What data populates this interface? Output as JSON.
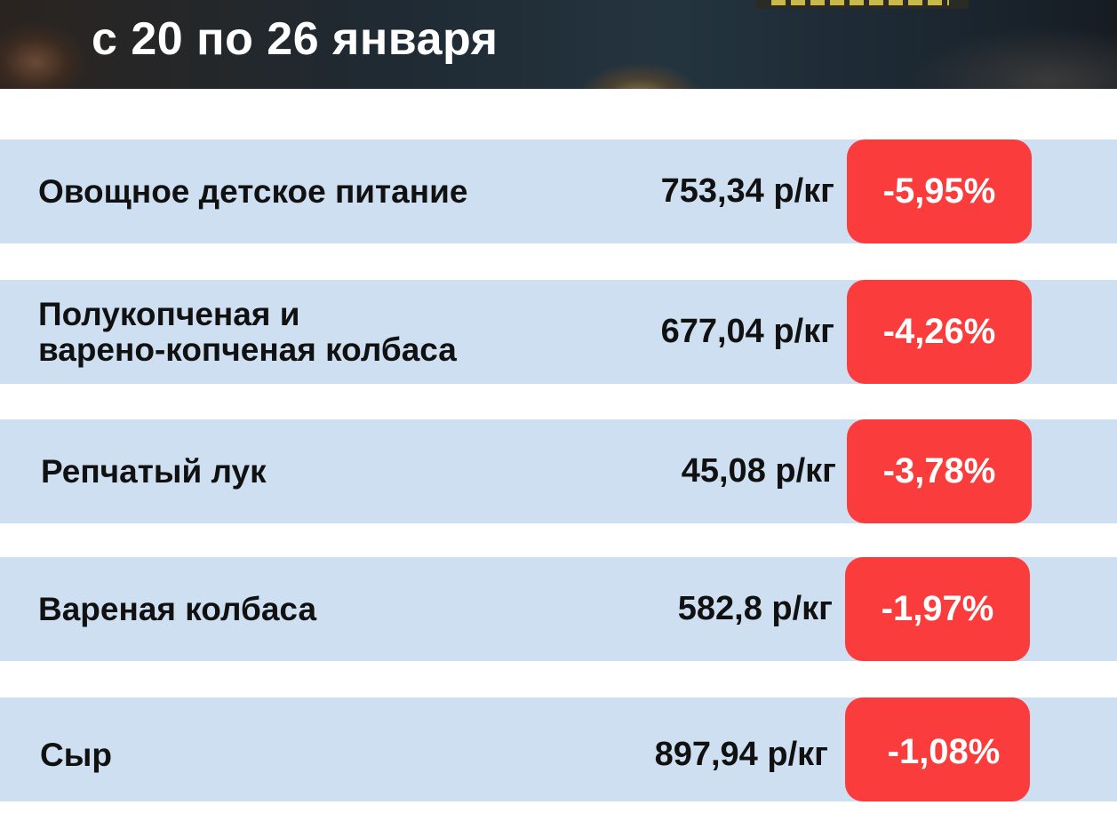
{
  "header": {
    "date_range": "с 20 по 26 января"
  },
  "colors": {
    "row_background": "#cddff0",
    "badge_red": "#fb3c3c",
    "text_dark": "#111111",
    "title_white": "#ffffff"
  },
  "rows": [
    {
      "name": "Овощное детское питание",
      "price": "753,34 р/кг",
      "change": "-5,95%"
    },
    {
      "name": "Полукопченая и\nварено-копченая колбаса",
      "price": "677,04 р/кг",
      "change": "-4,26%"
    },
    {
      "name": "Репчатый лук",
      "price": "45,08 р/кг",
      "change": "-3,78%"
    },
    {
      "name": "Вареная колбаса",
      "price": "582,8 р/кг",
      "change": "-1,97%"
    },
    {
      "name": "Сыр",
      "price": "897,94 р/кг",
      "change": "-1,08%"
    }
  ]
}
